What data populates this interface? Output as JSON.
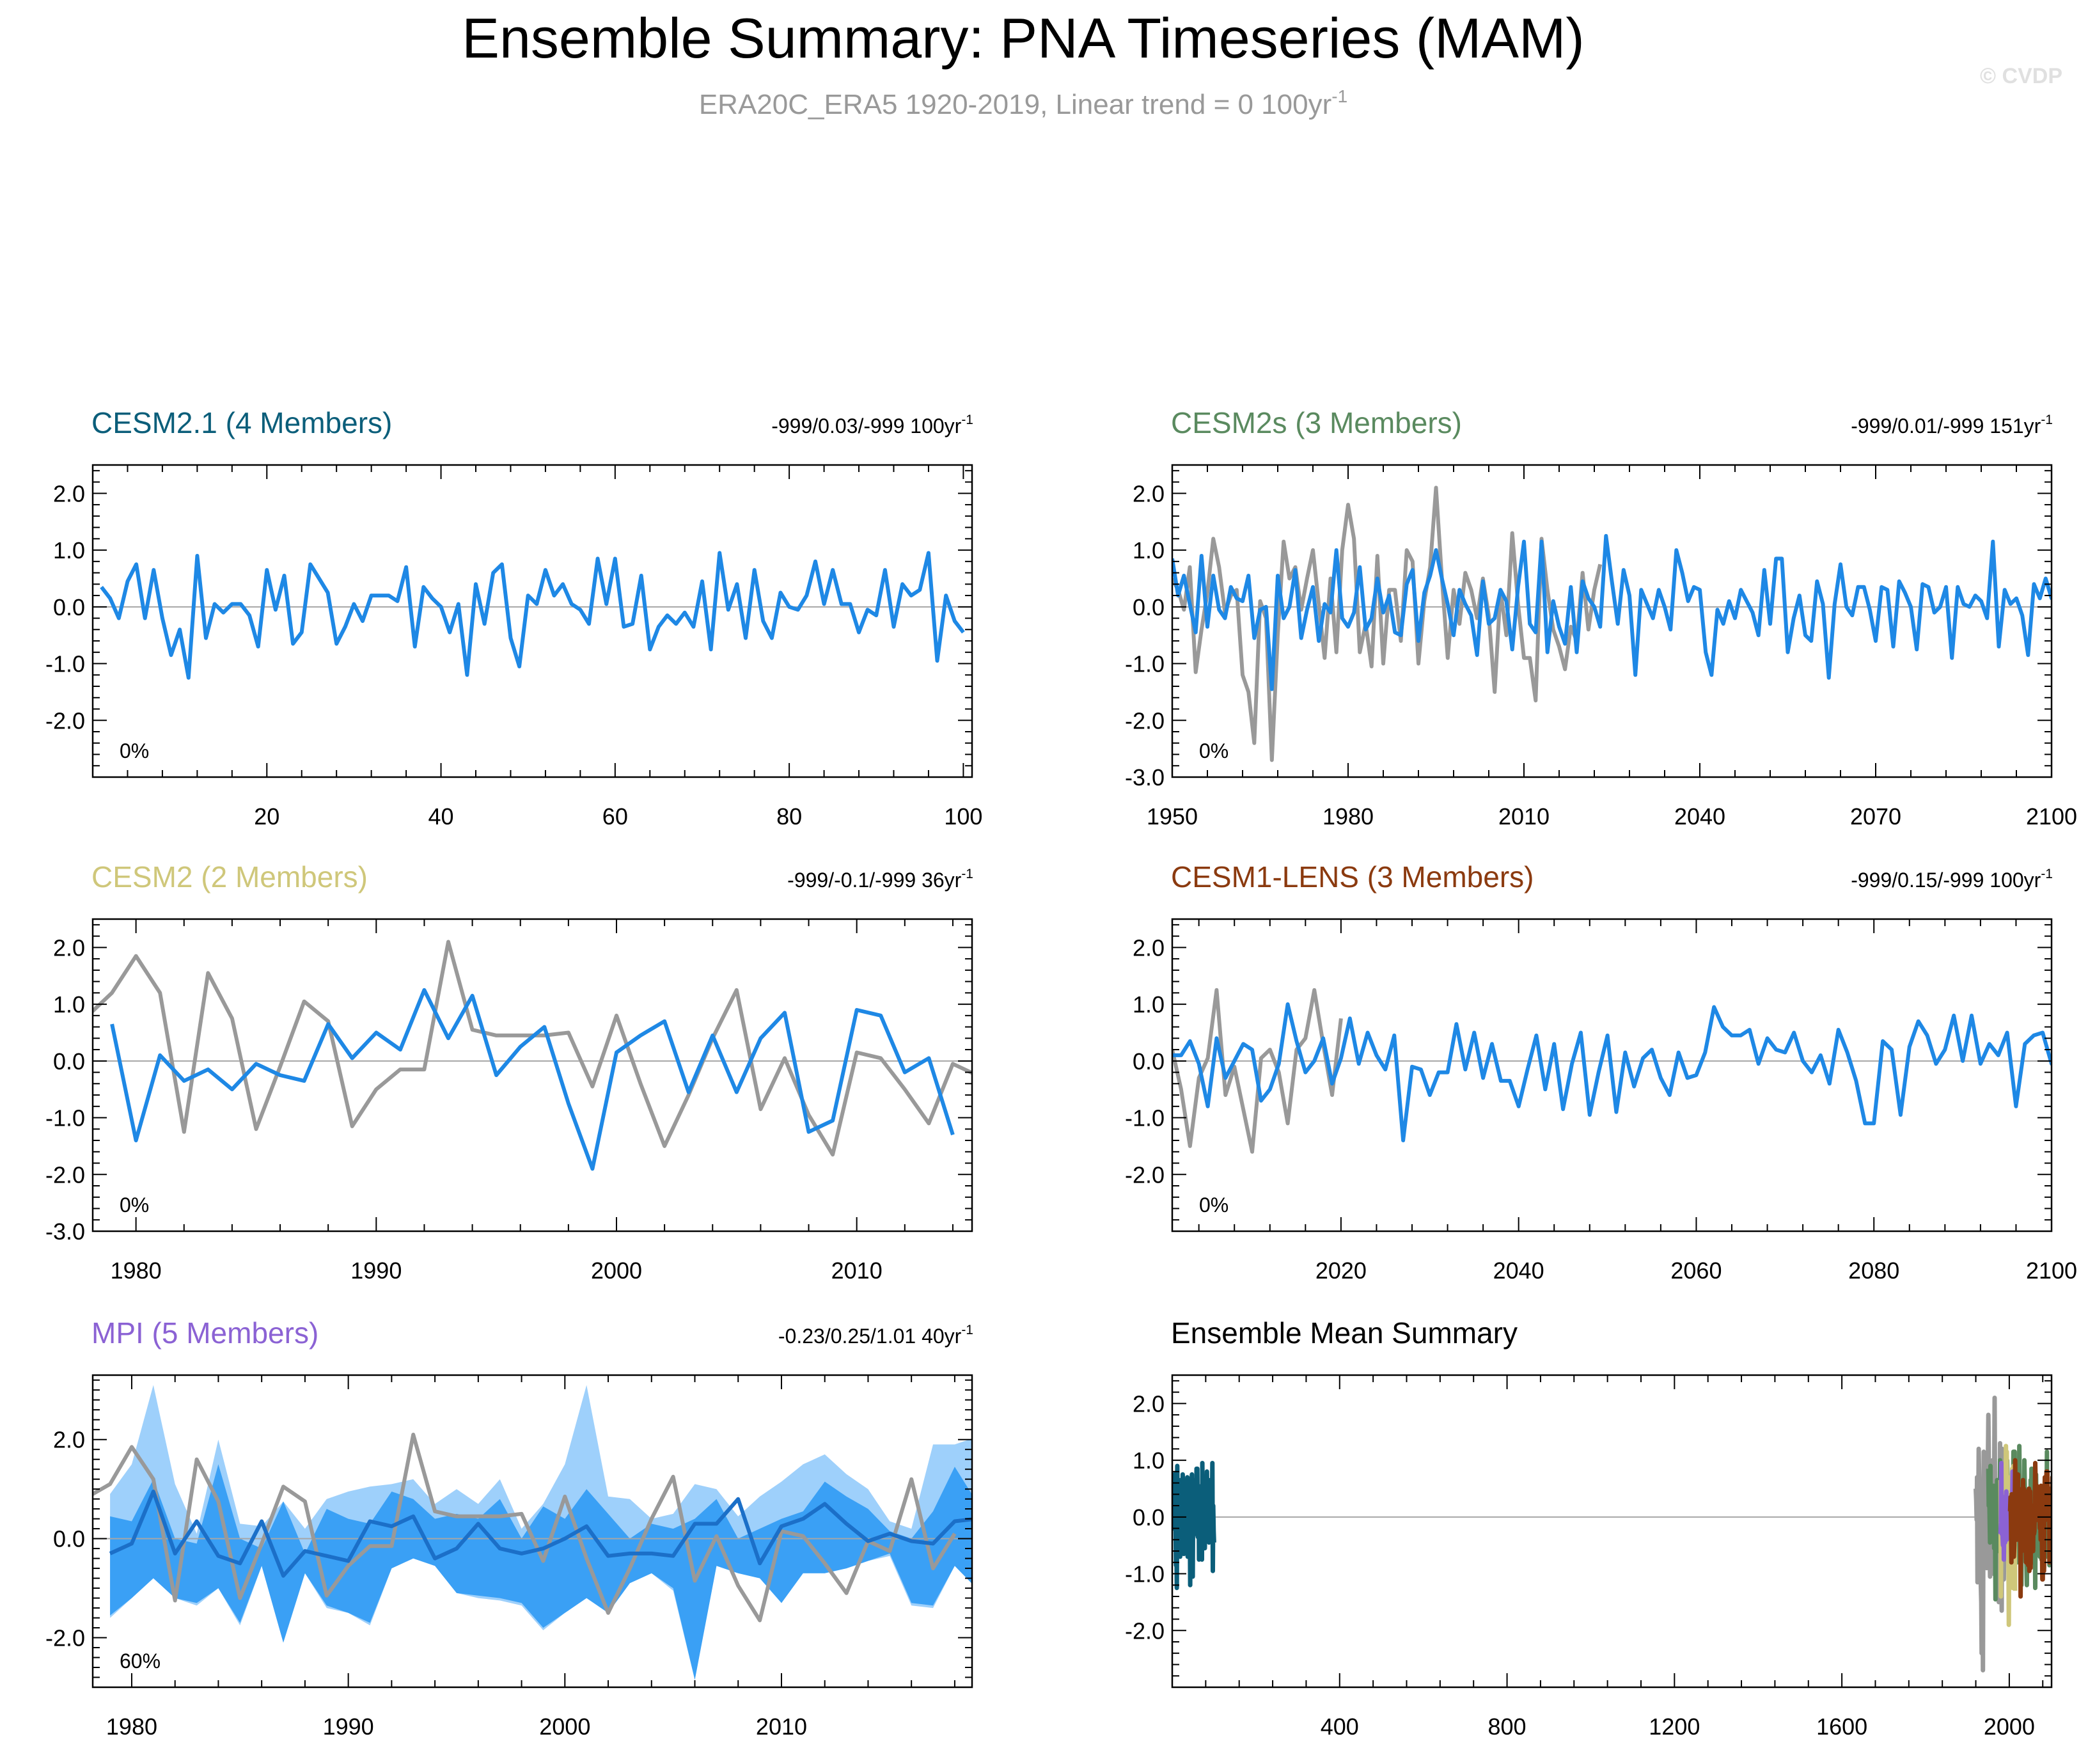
{
  "header": {
    "title": "Ensemble Summary: PNA Timeseries (MAM)",
    "subtitle_main": "ERA20C_ERA5 1920-2019, Linear trend = 0 100yr",
    "subtitle_sup": "-1",
    "watermark": "© CVDP"
  },
  "colors": {
    "model_line": "#1e88e5",
    "obs_line": "#999999",
    "band_light": "#9ed0fb",
    "band_dark": "#3aa0f5",
    "axis": "#000000",
    "zero_line": "#a6a6a6"
  },
  "chart_data": [
    {
      "type": "line",
      "title": "CESM2.1 (4 Members)",
      "title_color": "#0b5e7a",
      "trend_text": "-999/0.03/-999 100yr",
      "trend_sup": "-1",
      "percent_label": "0%",
      "xlim": [
        0,
        101
      ],
      "ylim": [
        -3.0,
        2.5
      ],
      "xticks": [
        20,
        40,
        60,
        80,
        100
      ],
      "yticks": [
        2.0,
        1.0,
        0.0,
        -1.0,
        -2.0
      ],
      "series": [
        {
          "role": "model",
          "x_start": 1,
          "x_step": 1,
          "values": [
            0.35,
            0.15,
            -0.2,
            0.45,
            0.75,
            -0.2,
            0.65,
            -0.2,
            -0.85,
            -0.4,
            -1.25,
            0.9,
            -0.55,
            0.05,
            -0.1,
            0.05,
            0.05,
            -0.15,
            -0.7,
            0.65,
            -0.05,
            0.55,
            -0.65,
            -0.45,
            0.75,
            0.5,
            0.25,
            -0.65,
            -0.35,
            0.05,
            -0.25,
            0.2,
            0.2,
            0.2,
            0.1,
            0.7,
            -0.7,
            0.35,
            0.15,
            0.0,
            -0.45,
            0.05,
            -1.2,
            0.4,
            -0.3,
            0.6,
            0.75,
            -0.55,
            -1.05,
            0.2,
            0.05,
            0.65,
            0.2,
            0.4,
            0.05,
            -0.05,
            -0.3,
            0.85,
            0.05,
            0.85,
            -0.35,
            -0.3,
            0.55,
            -0.75,
            -0.35,
            -0.15,
            -0.3,
            -0.1,
            -0.35,
            0.45,
            -0.75,
            0.95,
            -0.05,
            0.4,
            -0.55,
            0.65,
            -0.25,
            -0.55,
            0.25,
            0.0,
            -0.05,
            0.2,
            0.8,
            0.05,
            0.65,
            0.05,
            0.05,
            -0.45,
            -0.05,
            -0.15,
            0.65,
            -0.35,
            0.4,
            0.2,
            0.3,
            0.95,
            -0.95,
            0.2,
            -0.25,
            -0.45
          ]
        }
      ]
    },
    {
      "type": "line",
      "title": "CESM2s (3 Members)",
      "title_color": "#5a8a5f",
      "trend_text": "-999/0.01/-999 151yr",
      "trend_sup": "-1",
      "percent_label": "0%",
      "xlim": [
        1950,
        2100
      ],
      "ylim": [
        -3.0,
        2.5
      ],
      "xticks": [
        1950,
        1980,
        2010,
        2040,
        2070,
        2100
      ],
      "yticks": [
        2.0,
        1.0,
        0.0,
        -1.0,
        -2.0,
        -3.0
      ],
      "series": [
        {
          "role": "observations",
          "x_start": 1950,
          "x_step": 1,
          "values": [
            0.5,
            0.3,
            -0.05,
            0.7,
            -1.15,
            -0.4,
            0.25,
            1.2,
            0.7,
            -0.1,
            0.2,
            0.3,
            -1.2,
            -1.5,
            -2.4,
            0.1,
            -0.2,
            -2.7,
            -0.5,
            1.15,
            0.5,
            0.7,
            -0.05,
            0.5,
            1.0,
            0.05,
            -0.9,
            0.5,
            -0.8,
            1.0,
            1.8,
            1.2,
            -0.8,
            -0.3,
            -1.05,
            0.9,
            -1.0,
            0.3,
            0.3,
            -0.6,
            1.0,
            0.8,
            -1.0,
            0.1,
            0.7,
            2.1,
            0.5,
            -0.9,
            0.3,
            -0.3,
            0.6,
            0.3,
            -0.2,
            0.5,
            -0.15,
            -1.5,
            0.3,
            -0.5,
            1.3,
            0.05,
            -0.9,
            -0.9,
            -1.65,
            1.2,
            0.3,
            -0.4,
            -0.7,
            -1.1,
            -0.35,
            -0.6,
            0.6,
            -0.4,
            0.3,
            0.75
          ]
        },
        {
          "role": "model",
          "x_start": 1950,
          "x_step": 1,
          "values": [
            0.85,
            0.2,
            0.55,
            0.05,
            -0.45,
            0.9,
            -0.35,
            0.55,
            -0.05,
            -0.2,
            0.35,
            0.15,
            0.1,
            0.55,
            -0.55,
            -0.05,
            0.0,
            -1.45,
            0.55,
            -0.2,
            0.0,
            0.65,
            -0.55,
            -0.05,
            0.35,
            -0.6,
            0.05,
            -0.1,
            1.0,
            -0.2,
            -0.35,
            -0.1,
            0.7,
            -0.4,
            -0.2,
            0.5,
            -0.1,
            0.2,
            -0.45,
            -0.5,
            0.4,
            0.65,
            -0.6,
            0.25,
            0.55,
            1.0,
            0.5,
            0.05,
            -0.5,
            0.3,
            0.05,
            -0.15,
            -0.85,
            0.45,
            -0.3,
            -0.2,
            0.3,
            0.1,
            -0.75,
            0.35,
            1.15,
            -0.3,
            -0.45,
            1.15,
            -0.8,
            0.1,
            -0.35,
            -0.65,
            0.35,
            -0.8,
            0.45,
            0.15,
            0.0,
            -0.35,
            1.25,
            0.45,
            -0.3,
            0.65,
            0.2,
            -1.2,
            0.3,
            0.05,
            -0.2,
            0.3,
            0.0,
            -0.4,
            1.0,
            0.6,
            0.1,
            0.35,
            0.3,
            -0.8,
            -1.2,
            -0.05,
            -0.3,
            0.1,
            -0.2,
            0.3,
            0.1,
            -0.1,
            -0.5,
            0.65,
            -0.3,
            0.85,
            0.85,
            -0.8,
            -0.2,
            0.2,
            -0.5,
            -0.6,
            0.45,
            0.05,
            -1.25,
            0.05,
            0.75,
            0.0,
            -0.15,
            0.35,
            0.35,
            -0.05,
            -0.6,
            0.35,
            0.3,
            -0.7,
            0.45,
            0.25,
            0.0,
            -0.75,
            0.4,
            0.35,
            -0.1,
            0.0,
            0.35,
            -0.9,
            0.35,
            0.05,
            0.0,
            0.2,
            0.1,
            -0.2,
            1.15,
            -0.7,
            0.3,
            0.05,
            0.15,
            -0.15,
            -0.85,
            0.4,
            0.15,
            0.5,
            0.15,
            0.1,
            0.0
          ]
        }
      ]
    },
    {
      "type": "line",
      "title": "CESM2 (2 Members)",
      "title_color": "#cfc77a",
      "trend_text": "-999/-0.1/-999 36yr",
      "trend_sup": "-1",
      "percent_label": "0%",
      "xlim": [
        1978.2,
        2014.8
      ],
      "ylim": [
        -3.0,
        2.5
      ],
      "xticks": [
        1980,
        1990,
        2000,
        2010
      ],
      "yticks": [
        2.0,
        1.0,
        0.0,
        -1.0,
        -2.0,
        -3.0
      ],
      "series": [
        {
          "role": "observations",
          "x_start": 1978,
          "x_step": 1,
          "values": [
            0.8,
            1.2,
            1.85,
            1.2,
            -1.25,
            1.55,
            0.75,
            -1.2,
            -0.1,
            1.05,
            0.7,
            -1.15,
            -0.5,
            -0.15,
            -0.15,
            2.1,
            0.55,
            0.45,
            0.45,
            0.45,
            0.5,
            -0.45,
            0.8,
            -0.4,
            -1.5,
            -0.6,
            0.4,
            1.25,
            -0.85,
            0.05,
            -0.95,
            -1.65,
            0.15,
            0.05,
            -0.5,
            -1.1,
            -0.05,
            -0.25
          ]
        },
        {
          "role": "model",
          "x_start": 1979,
          "x_step": 1,
          "values": [
            0.65,
            -1.4,
            0.1,
            -0.35,
            -0.15,
            -0.5,
            -0.05,
            -0.25,
            -0.35,
            0.65,
            0.05,
            0.5,
            0.2,
            1.25,
            0.4,
            1.15,
            -0.25,
            0.25,
            0.6,
            -0.75,
            -1.9,
            0.15,
            0.45,
            0.7,
            -0.55,
            0.45,
            -0.55,
            0.4,
            0.85,
            -1.25,
            -1.05,
            0.9,
            0.8,
            -0.2,
            0.05,
            -1.3
          ]
        }
      ]
    },
    {
      "type": "line",
      "title": "CESM1-LENS (3 Members)",
      "title_color": "#8b3a0f",
      "trend_text": "-999/0.15/-999 100yr",
      "trend_sup": "-1",
      "percent_label": "0%",
      "xlim": [
        2001,
        2100
      ],
      "ylim": [
        -3.0,
        2.5
      ],
      "xticks": [
        2020,
        2040,
        2060,
        2080,
        2100
      ],
      "yticks": [
        2.0,
        1.0,
        0.0,
        -1.0,
        -2.0
      ],
      "series": [
        {
          "role": "observations",
          "x_start": 2001,
          "x_step": 1,
          "values": [
            0.2,
            -0.5,
            -1.5,
            -0.3,
            0.05,
            1.25,
            -0.6,
            -0.1,
            -0.85,
            -1.6,
            0.05,
            0.2,
            -0.2,
            -1.1,
            0.2,
            0.4,
            1.25,
            0.3,
            -0.6,
            0.75
          ]
        },
        {
          "role": "model",
          "x_start": 2001,
          "x_step": 1,
          "values": [
            0.1,
            0.1,
            0.35,
            -0.05,
            -0.8,
            0.4,
            -0.3,
            0.0,
            0.3,
            0.2,
            -0.7,
            -0.5,
            -0.05,
            1.0,
            0.35,
            -0.2,
            0.0,
            0.4,
            -0.4,
            0.05,
            0.75,
            -0.05,
            0.5,
            0.1,
            -0.15,
            0.45,
            -1.4,
            -0.1,
            -0.15,
            -0.6,
            -0.2,
            -0.2,
            0.65,
            -0.15,
            0.5,
            -0.3,
            0.3,
            -0.35,
            -0.35,
            -0.8,
            -0.15,
            0.45,
            -0.5,
            0.3,
            -0.85,
            -0.05,
            0.5,
            -0.95,
            -0.2,
            0.45,
            -0.9,
            0.15,
            -0.45,
            0.05,
            0.2,
            -0.3,
            -0.6,
            0.15,
            -0.3,
            -0.25,
            0.15,
            0.95,
            0.6,
            0.45,
            0.45,
            0.55,
            -0.05,
            0.4,
            0.2,
            0.15,
            0.5,
            0.0,
            -0.2,
            0.1,
            -0.4,
            0.55,
            0.15,
            -0.35,
            -1.1,
            -1.1,
            0.35,
            0.2,
            -0.95,
            0.25,
            0.7,
            0.45,
            -0.05,
            0.2,
            0.8,
            0.0,
            0.8,
            -0.05,
            0.3,
            0.1,
            0.5,
            -0.8,
            0.3,
            0.45,
            0.5,
            -0.05,
            0.5,
            -0.1,
            0.7,
            -0.25,
            -0.75,
            -0.7
          ]
        }
      ]
    },
    {
      "type": "area",
      "title": "MPI (5 Members)",
      "title_color": "#8b62d4",
      "trend_text": "-0.23/0.25/1.01 40yr",
      "trend_sup": "-1",
      "percent_label": "60%",
      "xlim": [
        1978.2,
        2018.8
      ],
      "ylim": [
        -3.0,
        3.3
      ],
      "xticks": [
        1980,
        1990,
        2000,
        2010
      ],
      "yticks": [
        2.0,
        0.0,
        -2.0
      ],
      "x_start": 1979,
      "bands": {
        "outer_upper": [
          0.9,
          1.5,
          3.1,
          1.1,
          0.1,
          2.0,
          0.3,
          0.25,
          0.75,
          0.2,
          0.8,
          0.95,
          1.05,
          1.1,
          1.2,
          0.7,
          1.0,
          0.7,
          1.2,
          0.2,
          0.7,
          1.5,
          3.1,
          0.85,
          0.8,
          0.4,
          0.5,
          1.1,
          1.0,
          0.45,
          0.85,
          1.15,
          1.5,
          1.7,
          1.3,
          1.0,
          0.35,
          0.2,
          1.9,
          1.9,
          2.05
        ],
        "inner_upper": [
          0.45,
          0.35,
          1.2,
          0.0,
          -0.1,
          1.5,
          0.0,
          -0.2,
          0.75,
          -0.3,
          0.6,
          0.4,
          0.3,
          0.95,
          0.8,
          0.4,
          0.5,
          0.4,
          0.8,
          0.0,
          0.65,
          0.4,
          1.0,
          0.5,
          0.0,
          0.3,
          0.2,
          0.4,
          0.8,
          0.0,
          0.2,
          0.4,
          0.55,
          1.15,
          0.85,
          0.6,
          0.15,
          0.0,
          0.55,
          1.45,
          0.75
        ],
        "inner_lower": [
          -1.55,
          -1.2,
          -0.8,
          -1.2,
          -1.3,
          -1.0,
          -1.7,
          -0.55,
          -2.1,
          -0.7,
          -1.35,
          -1.5,
          -1.7,
          -0.6,
          -0.4,
          -0.55,
          -1.1,
          -1.15,
          -1.2,
          -1.3,
          -1.8,
          -1.5,
          -1.2,
          -1.5,
          -0.9,
          -0.7,
          -1.0,
          -2.85,
          -0.55,
          -0.7,
          -0.8,
          -1.3,
          -0.7,
          -0.7,
          -0.6,
          -0.45,
          -0.3,
          -1.3,
          -1.35,
          -0.55,
          -1.0
        ],
        "outer_lower": [
          -1.6,
          -1.2,
          -0.8,
          -1.2,
          -1.35,
          -1.0,
          -1.75,
          -0.55,
          -2.1,
          -0.7,
          -1.4,
          -1.5,
          -1.75,
          -0.6,
          -0.4,
          -0.55,
          -1.1,
          -1.2,
          -1.25,
          -1.35,
          -1.85,
          -1.5,
          -1.2,
          -1.5,
          -0.9,
          -0.7,
          -1.05,
          -2.85,
          -0.55,
          -0.7,
          -0.8,
          -1.3,
          -0.7,
          -0.7,
          -0.6,
          -0.45,
          -0.35,
          -1.35,
          -1.4,
          -0.55,
          -1.0
        ]
      },
      "series": [
        {
          "role": "observations",
          "x_start": 1978,
          "x_step": 1,
          "values": [
            0.85,
            1.1,
            1.85,
            1.2,
            -1.25,
            1.6,
            0.75,
            -1.2,
            -0.1,
            1.05,
            0.75,
            -1.15,
            -0.55,
            -0.15,
            -0.15,
            2.1,
            0.55,
            0.45,
            0.45,
            0.45,
            0.5,
            -0.45,
            0.85,
            -0.4,
            -1.5,
            -0.6,
            0.4,
            1.25,
            -0.85,
            0.05,
            -0.95,
            -1.65,
            0.15,
            0.05,
            -0.5,
            -1.1,
            -0.05,
            -0.25,
            1.2,
            -0.6,
            0.1
          ]
        },
        {
          "role": "ensemble_mean",
          "x_start": 1979,
          "x_step": 1,
          "values": [
            -0.3,
            -0.1,
            0.95,
            -0.3,
            0.35,
            -0.35,
            -0.5,
            0.35,
            -0.75,
            -0.25,
            -0.35,
            -0.45,
            0.35,
            0.25,
            0.45,
            -0.4,
            -0.2,
            0.3,
            -0.2,
            -0.3,
            -0.2,
            0.0,
            0.25,
            -0.35,
            -0.3,
            -0.3,
            -0.35,
            0.3,
            0.3,
            0.8,
            -0.5,
            0.25,
            0.4,
            0.7,
            0.3,
            -0.05,
            0.1,
            -0.05,
            -0.1,
            0.35,
            0.4
          ]
        }
      ]
    },
    {
      "type": "line",
      "title": "Ensemble Mean Summary",
      "title_color": "#000000",
      "trend_text": "",
      "trend_sup": "",
      "percent_label": "",
      "xlim": [
        0,
        2101
      ],
      "ylim": [
        -3.0,
        2.5
      ],
      "xticks": [
        400,
        800,
        1200,
        1600,
        2000
      ],
      "yticks": [
        2.0,
        1.0,
        0.0,
        -1.0,
        -2.0
      ],
      "series": [
        {
          "role": "observations",
          "color": "#999999",
          "x_start": 1920,
          "x_step": 1,
          "source_panel": 1,
          "source_series": 0
        },
        {
          "role": "CESM2.1",
          "color": "#0b5e7a",
          "x_start": 1,
          "x_step": 1,
          "source_panel": 0,
          "source_series": 0
        },
        {
          "role": "CESM2s",
          "color": "#5a8a5f",
          "x_start": 1950,
          "x_step": 1,
          "source_panel": 1,
          "source_series": 1
        },
        {
          "role": "CESM2",
          "color": "#cfc77a",
          "x_start": 1979,
          "x_step": 1,
          "source_panel": 2,
          "source_series": 1
        },
        {
          "role": "MPI",
          "color": "#8b62d4",
          "x_start": 1979,
          "x_step": 1,
          "source_panel": 4,
          "source_series": 1
        },
        {
          "role": "CESM1-LENS",
          "color": "#8b3a0f",
          "x_start": 2001,
          "x_step": 1,
          "source_panel": 3,
          "source_series": 1
        }
      ]
    }
  ]
}
